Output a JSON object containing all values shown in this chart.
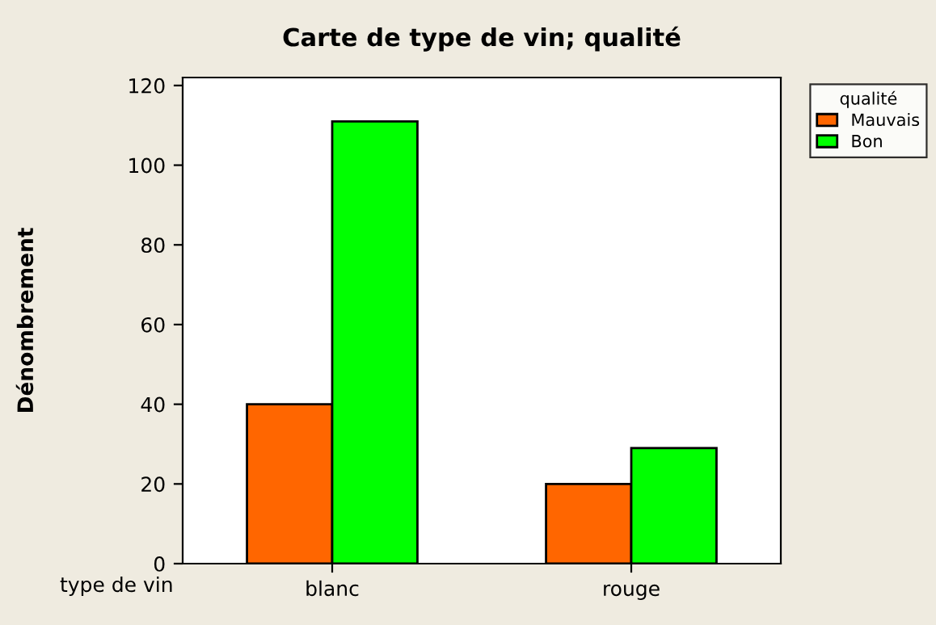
{
  "chart_data": {
    "type": "bar",
    "title": "Carte de type de vin; qualité",
    "xlabel": "type de vin",
    "ylabel": "Dénombrement",
    "legend_title": "qualité",
    "categories": [
      "blanc",
      "rouge"
    ],
    "series": [
      {
        "name": "Mauvais",
        "color": "#ff6600",
        "values": [
          40,
          20
        ]
      },
      {
        "name": "Bon",
        "color": "#00ff00",
        "values": [
          111,
          29
        ]
      }
    ],
    "ylim": [
      0,
      122
    ],
    "yticks": [
      0,
      20,
      40,
      60,
      80,
      100,
      120
    ],
    "grid": false,
    "legend": "top right"
  }
}
